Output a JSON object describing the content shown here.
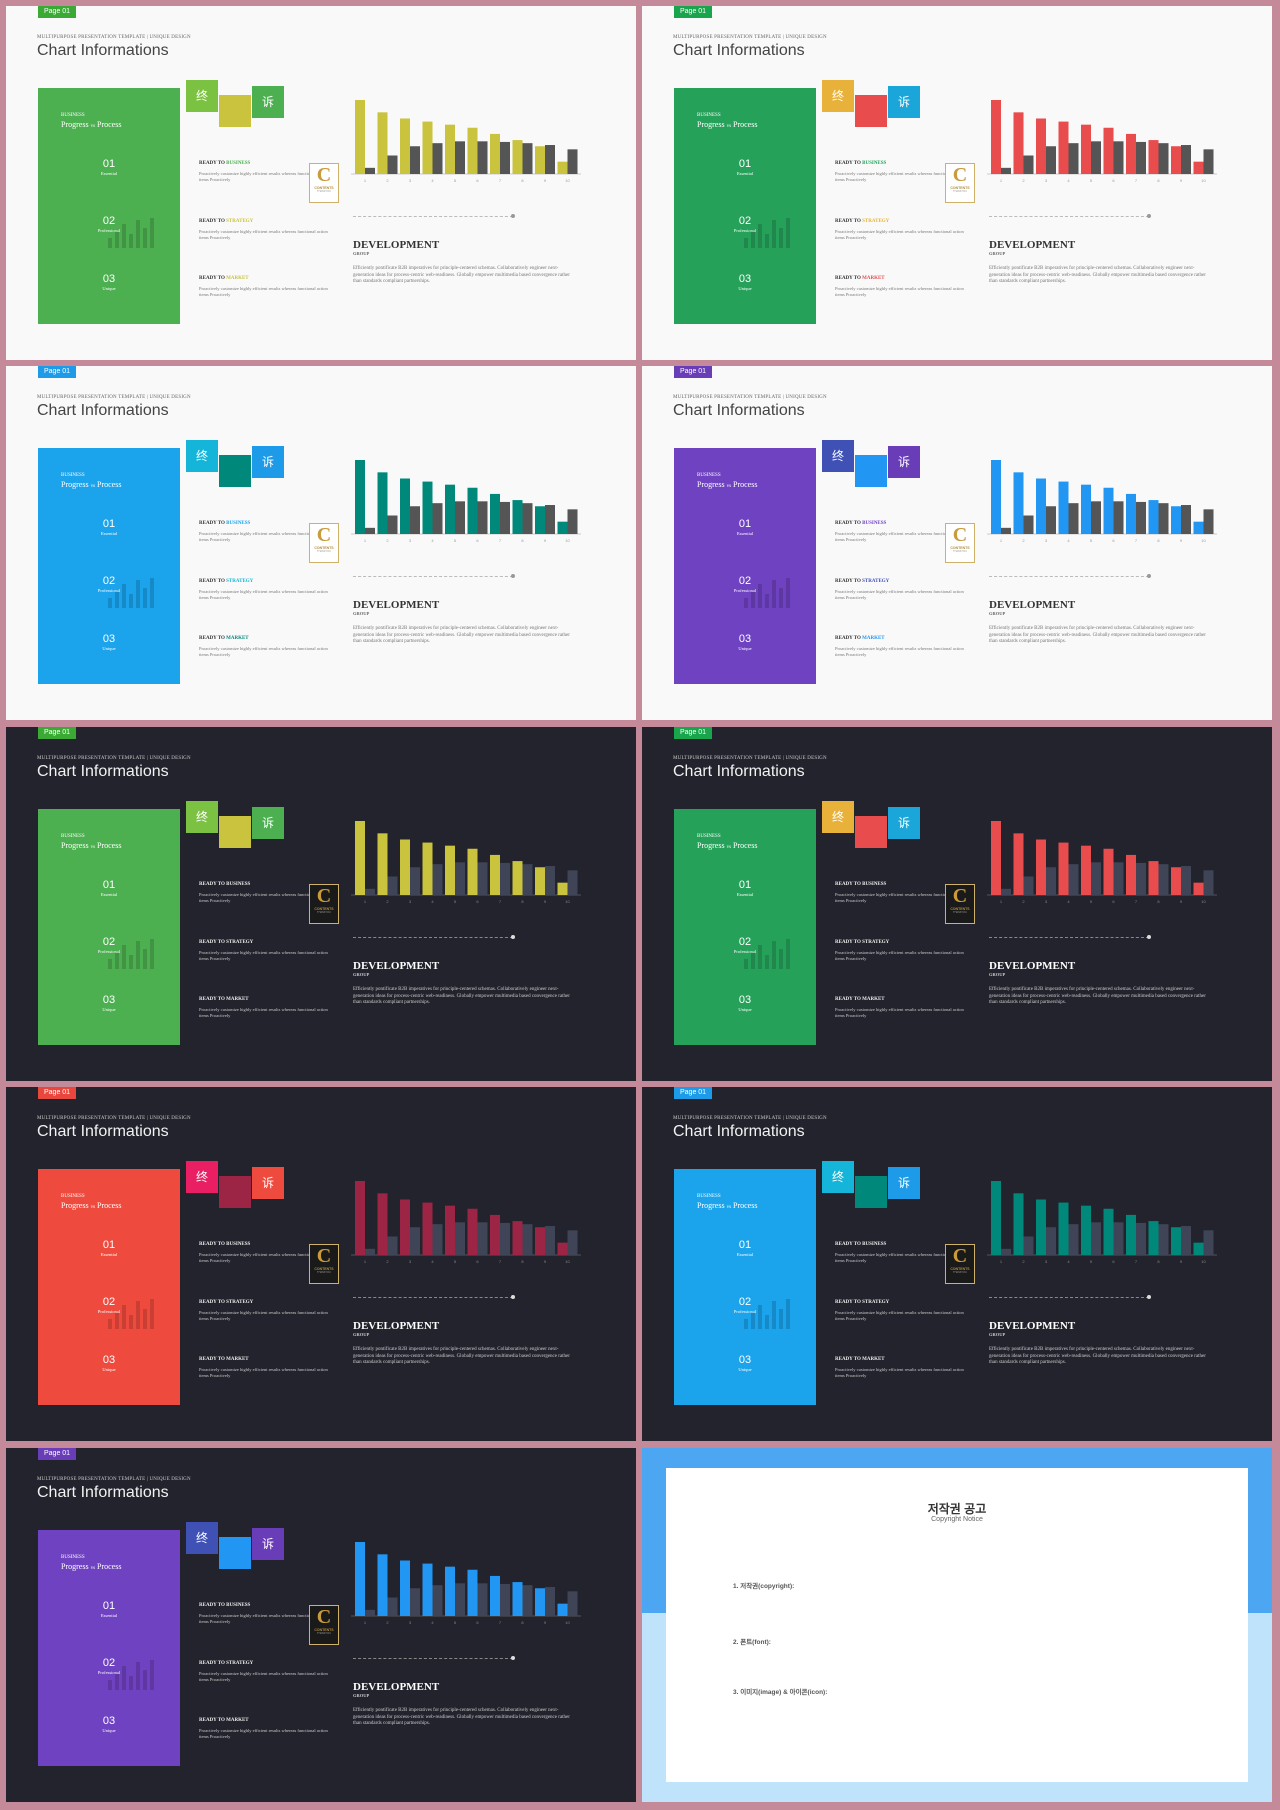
{
  "common": {
    "supertitle": "MULTIPURPOSE PRESENTATION TEMPLATE | UNIQUE DESIGN",
    "title": "Chart Informations",
    "panel": {
      "business": "BUSINESS",
      "progress_a": "Progress",
      "progress_vs": "vs",
      "progress_b": "Process",
      "steps": [
        {
          "num": "01",
          "label": "Essential"
        },
        {
          "num": "02",
          "label": "Professional"
        },
        {
          "num": "03",
          "label": "Unique"
        }
      ]
    },
    "squares": [
      "终",
      "",
      "诉"
    ],
    "ready": [
      {
        "prefix": "READY TO ",
        "word": "BUSINESS",
        "body": "Proactively customize highly efficient results whereas functional action items Proactively"
      },
      {
        "prefix": "READY TO ",
        "word": "STRATEGY",
        "body": "Proactively customize highly efficient results whereas functional action items Proactively"
      },
      {
        "prefix": "READY TO ",
        "word": "MARKET",
        "body": "Proactively customize highly efficient results whereas functional action items Proactively"
      }
    ],
    "logo": {
      "letter": "C",
      "text": "CONTENTS",
      "sub": "THANKYOU"
    },
    "development": "DEVELOPMENT",
    "group": "GROUP",
    "dev_body": "Efficiently pontificate B2B imperatives for principle-centered schemas. Collaboratively engineer next-generation ideas for process-centric web-readiness. Globally empower multimedia based convergence rather than standards compliant partnerships."
  },
  "chart_data": {
    "type": "bar",
    "categories": [
      "1",
      "2",
      "3",
      "4",
      "5",
      "6",
      "7",
      "8",
      "9",
      "10"
    ],
    "series": [
      {
        "values": [
          1,
          3,
          4.5,
          5,
          5.3,
          5.3,
          5.2,
          5,
          4.7,
          4
        ]
      },
      {
        "values": [
          12,
          10,
          9,
          8.5,
          8,
          7.5,
          6.5,
          5.5,
          4.5,
          2
        ]
      }
    ],
    "ylim": [
      0,
      12
    ]
  },
  "slides": [
    {
      "page": "Page 01",
      "theme": "light",
      "tag": "#3aaa35",
      "panel": "#4caf50",
      "sq": [
        "#7cc242",
        "#c9c33d",
        "#4caf50"
      ],
      "bars": [
        "#555555",
        "#c9c33d"
      ],
      "accent": [
        "#4caf50",
        "#c9c33d",
        "#c9c33d"
      ]
    },
    {
      "page": "Page 01",
      "theme": "light",
      "tag": "#18a54c",
      "panel": "#26a15a",
      "sq": [
        "#e8b23a",
        "#e84c4c",
        "#1aa6d9"
      ],
      "bars": [
        "#555555",
        "#e84c4c"
      ],
      "accent": [
        "#26a15a",
        "#e8b23a",
        "#e84c4c"
      ]
    },
    {
      "page": "Page 01",
      "theme": "light",
      "tag": "#1e9be8",
      "panel": "#1ba3ec",
      "sq": [
        "#14b5d8",
        "#00897b",
        "#1e9be8"
      ],
      "bars": [
        "#555555",
        "#00897b"
      ],
      "accent": [
        "#1ba3ec",
        "#14b5d8",
        "#00897b"
      ]
    },
    {
      "page": "Page 01",
      "theme": "light",
      "tag": "#6a3db8",
      "panel": "#6f42c1",
      "sq": [
        "#3f51b5",
        "#2196f3",
        "#6a3db8"
      ],
      "bars": [
        "#555555",
        "#2196f3"
      ],
      "accent": [
        "#6f42c1",
        "#3f51b5",
        "#2196f3"
      ]
    },
    {
      "page": "Page 01",
      "theme": "dark",
      "tag": "#3aaa35",
      "panel": "#4caf50",
      "sq": [
        "#7cc242",
        "#c9c33d",
        "#4caf50"
      ],
      "bars": [
        "#3f4556",
        "#c9c33d"
      ],
      "accent": [
        "#eeeeee",
        "#eeeeee",
        "#eeeeee"
      ]
    },
    {
      "page": "Page 01",
      "theme": "dark",
      "tag": "#18a54c",
      "panel": "#26a15a",
      "sq": [
        "#e8b23a",
        "#e84c4c",
        "#1aa6d9"
      ],
      "bars": [
        "#3f4556",
        "#e84c4c"
      ],
      "accent": [
        "#eeeeee",
        "#eeeeee",
        "#eeeeee"
      ]
    },
    {
      "page": "Page 01",
      "theme": "dark",
      "tag": "#e8473d",
      "panel": "#ee4b3e",
      "sq": [
        "#e91e63",
        "#9c2445",
        "#ee4b3e"
      ],
      "bars": [
        "#3f4556",
        "#9c2445"
      ],
      "accent": [
        "#eeeeee",
        "#eeeeee",
        "#eeeeee"
      ]
    },
    {
      "page": "Page 01",
      "theme": "dark",
      "tag": "#1e9be8",
      "panel": "#1ba3ec",
      "sq": [
        "#14b5d8",
        "#00897b",
        "#1e9be8"
      ],
      "bars": [
        "#3f4556",
        "#00897b"
      ],
      "accent": [
        "#eeeeee",
        "#eeeeee",
        "#eeeeee"
      ]
    },
    {
      "page": "Page 01",
      "theme": "dark",
      "tag": "#6a3db8",
      "panel": "#6f42c1",
      "sq": [
        "#3f51b5",
        "#2196f3",
        "#6a3db8"
      ],
      "bars": [
        "#3f4556",
        "#2196f3"
      ],
      "accent": [
        "#eeeeee",
        "#eeeeee",
        "#eeeeee"
      ]
    }
  ],
  "copyright": {
    "title": "저작권 공고",
    "subtitle": "Copyright Notice",
    "intro": "",
    "items": [
      {
        "head": "1. 저작권(copyright):",
        "body": ""
      },
      {
        "head": "2. 폰트(font):",
        "body": ""
      },
      {
        "head": "3. 이미지(image) & 아이콘(icon):",
        "body": ""
      }
    ],
    "outro": ""
  }
}
